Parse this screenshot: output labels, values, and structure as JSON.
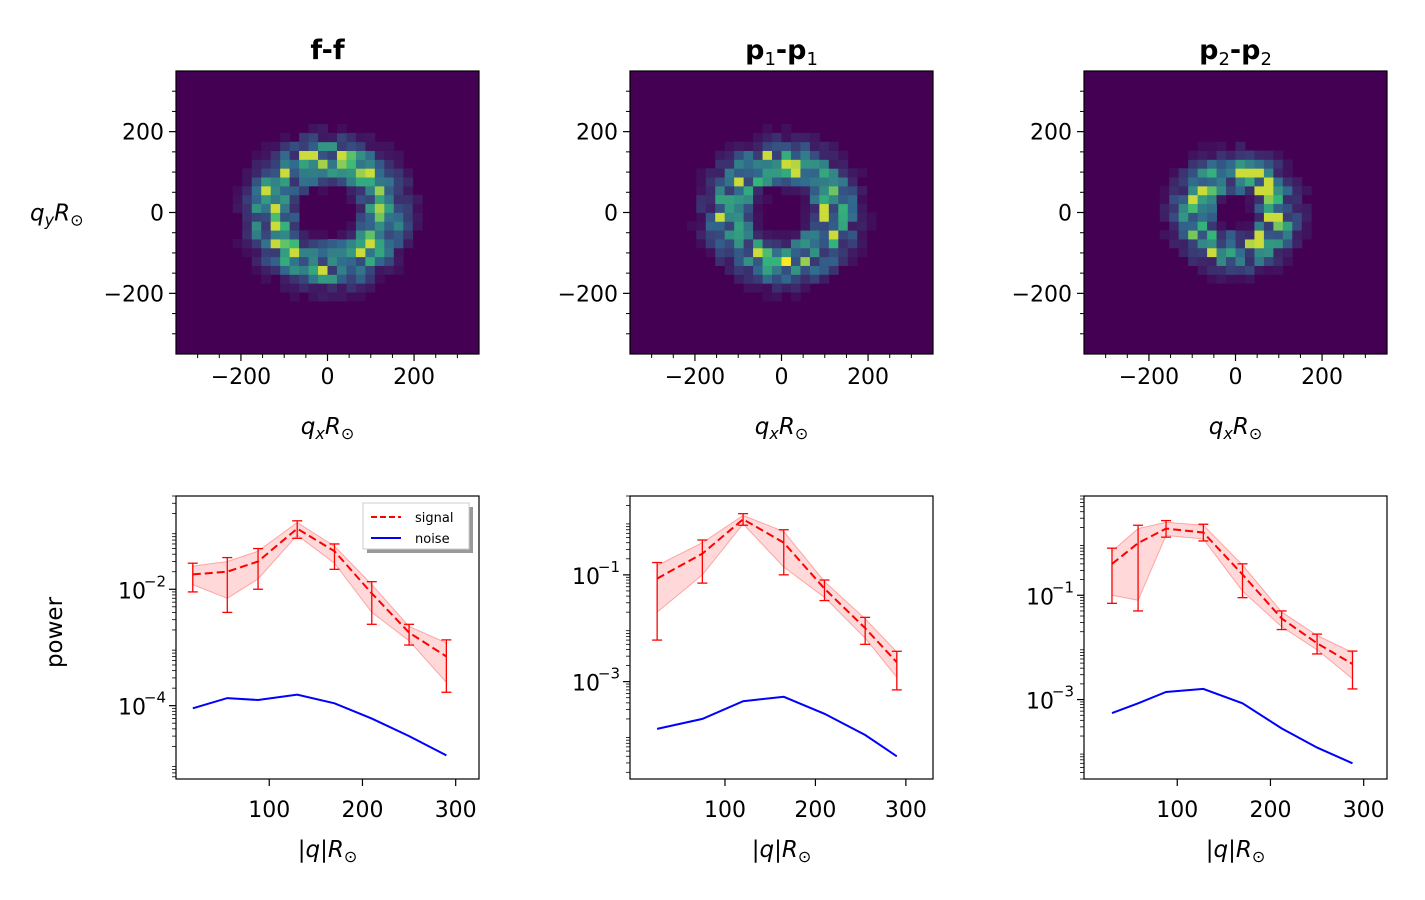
{
  "chart_data": [
    {
      "type": "heatmap",
      "title_main": "f-f",
      "title_sub1": "",
      "title_mid": "",
      "title_sub2": "",
      "xlabel": "q",
      "xlabel_sub": "x",
      "xlabel_tail": "R",
      "xlabel_odot": "⊙",
      "ylabel": "q",
      "ylabel_sub": "y",
      "ylabel_tail": "R",
      "ylabel_odot": "⊙",
      "xlim": [
        -350,
        350
      ],
      "ylim": [
        -350,
        350
      ],
      "xticks": [
        -200,
        0,
        200
      ],
      "yticks": [
        -200,
        0,
        200
      ],
      "xtick_labels": [
        "−200",
        "0",
        "200"
      ],
      "ytick_labels": [
        "−200",
        "0",
        "200"
      ],
      "ring_radius": 130,
      "ring_width": 55,
      "seed": 11,
      "colors": {
        "background": "#440154",
        "mid": "#31688e",
        "high": "#35b779",
        "peak": "#fde725"
      }
    },
    {
      "type": "heatmap",
      "title_main": "p",
      "title_sub1": "1",
      "title_mid": "-p",
      "title_sub2": "1",
      "xlabel": "q",
      "xlabel_sub": "x",
      "xlabel_tail": "R",
      "xlabel_odot": "⊙",
      "xlim": [
        -350,
        350
      ],
      "ylim": [
        -350,
        350
      ],
      "xticks": [
        -200,
        0,
        200
      ],
      "yticks": [
        -200,
        0,
        200
      ],
      "xtick_labels": [
        "−200",
        "0",
        "200"
      ],
      "ytick_labels": [
        "−200",
        "0",
        "200"
      ],
      "ring_radius": 120,
      "ring_width": 55,
      "seed": 23,
      "colors": {
        "background": "#440154",
        "mid": "#31688e",
        "high": "#35b779",
        "peak": "#fde725"
      }
    },
    {
      "type": "heatmap",
      "title_main": "p",
      "title_sub1": "2",
      "title_mid": "-p",
      "title_sub2": "2",
      "xlabel": "q",
      "xlabel_sub": "x",
      "xlabel_tail": "R",
      "xlabel_odot": "⊙",
      "xlim": [
        -350,
        350
      ],
      "ylim": [
        -350,
        350
      ],
      "xticks": [
        -200,
        0,
        200
      ],
      "yticks": [
        -200,
        0,
        200
      ],
      "xtick_labels": [
        "−200",
        "0",
        "200"
      ],
      "ytick_labels": [
        "−200",
        "0",
        "200"
      ],
      "ring_radius": 95,
      "ring_width": 50,
      "seed": 37,
      "colors": {
        "background": "#440154",
        "mid": "#31688e",
        "high": "#35b779",
        "peak": "#fde725"
      }
    },
    {
      "type": "line",
      "xlabel": "|q|R",
      "xlabel_odot": "⊙",
      "ylabel": "power",
      "yscale": "log",
      "xlim": [
        0,
        325
      ],
      "ylim": [
        5.5e-06,
        0.4
      ],
      "xticks": [
        100,
        200,
        300
      ],
      "xtick_labels": [
        "100",
        "200",
        "300"
      ],
      "yticks": [
        0.01,
        0.0001
      ],
      "ytick_mantissa": [
        "10",
        "10"
      ],
      "ytick_exponent": [
        "−2",
        "−4"
      ],
      "legend": {
        "placement": "top-right",
        "entries": [
          "signal",
          "noise"
        ]
      },
      "series": [
        {
          "name": "signal",
          "style": "dashed",
          "color": "#ff0000",
          "x": [
            18,
            55,
            88,
            130,
            170,
            210,
            250,
            290
          ],
          "y": [
            0.018,
            0.02,
            0.03,
            0.11,
            0.045,
            0.0085,
            0.0018,
            0.0007
          ],
          "err_low": [
            0.009,
            0.004,
            0.01,
            0.075,
            0.022,
            0.0025,
            0.0011,
            0.00017
          ],
          "err_high": [
            0.028,
            0.035,
            0.05,
            0.15,
            0.06,
            0.0135,
            0.0025,
            0.00135
          ],
          "band_low": [
            0.012,
            0.007,
            0.015,
            0.085,
            0.028,
            0.004,
            0.0013,
            0.00025
          ],
          "band_high": [
            0.025,
            0.03,
            0.045,
            0.14,
            0.055,
            0.012,
            0.0023,
            0.0012
          ]
        },
        {
          "name": "noise",
          "style": "solid",
          "color": "#0000ff",
          "x": [
            18,
            55,
            88,
            130,
            170,
            210,
            250,
            290
          ],
          "y": [
            9e-05,
            0.000135,
            0.000125,
            0.000155,
            0.00011,
            6e-05,
            3e-05,
            1.4e-05
          ]
        }
      ]
    },
    {
      "type": "line",
      "xlabel": "|q|R",
      "xlabel_odot": "⊙",
      "yscale": "log",
      "xlim": [
        -5,
        330
      ],
      "ylim": [
        1.5e-05,
        3.0
      ],
      "xticks": [
        100,
        200,
        300
      ],
      "xtick_labels": [
        "100",
        "200",
        "300"
      ],
      "yticks": [
        0.1,
        0.001
      ],
      "ytick_mantissa": [
        "10",
        "10"
      ],
      "ytick_exponent": [
        "−1",
        "−3"
      ],
      "series": [
        {
          "name": "",
          "style": "dashed",
          "color": "#ff0000",
          "x": [
            25,
            75,
            120,
            165,
            210,
            255,
            290
          ],
          "y": [
            0.085,
            0.25,
            1.1,
            0.4,
            0.055,
            0.01,
            0.0023
          ],
          "err_low": [
            0.006,
            0.07,
            0.85,
            0.1,
            0.033,
            0.005,
            0.0007
          ],
          "err_high": [
            0.17,
            0.45,
            1.4,
            0.7,
            0.08,
            0.016,
            0.0037
          ],
          "band_low": [
            0.02,
            0.1,
            0.9,
            0.14,
            0.038,
            0.0065,
            0.0012
          ],
          "band_high": [
            0.15,
            0.4,
            1.3,
            0.65,
            0.075,
            0.015,
            0.0036
          ]
        },
        {
          "name": "",
          "style": "solid",
          "color": "#0000ff",
          "x": [
            25,
            75,
            120,
            165,
            210,
            255,
            290
          ],
          "y": [
            0.00013,
            0.0002,
            0.00043,
            0.00052,
            0.00025,
            0.0001,
            4e-05
          ]
        }
      ]
    },
    {
      "type": "line",
      "xlabel": "|q|R",
      "xlabel_odot": "⊙",
      "yscale": "log",
      "xlim": [
        0,
        325
      ],
      "ylim": [
        3e-05,
        8.0
      ],
      "xticks": [
        100,
        200,
        300
      ],
      "xtick_labels": [
        "100",
        "200",
        "300"
      ],
      "yticks": [
        0.1,
        0.001
      ],
      "ytick_mantissa": [
        "10",
        "10"
      ],
      "ytick_exponent": [
        "−1",
        "−3"
      ],
      "series": [
        {
          "name": "",
          "style": "dashed",
          "color": "#ff0000",
          "x": [
            30,
            58,
            88,
            128,
            170,
            212,
            250,
            288
          ],
          "y": [
            0.4,
            1.0,
            1.9,
            1.6,
            0.25,
            0.036,
            0.012,
            0.0048
          ],
          "err_low": [
            0.07,
            0.05,
            1.3,
            1.1,
            0.09,
            0.022,
            0.0075,
            0.0016
          ],
          "err_high": [
            0.8,
            2.2,
            2.7,
            2.3,
            0.4,
            0.05,
            0.018,
            0.0085
          ],
          "band_low": [
            0.1,
            0.08,
            1.4,
            1.2,
            0.12,
            0.025,
            0.009,
            0.0025
          ],
          "band_high": [
            0.7,
            1.9,
            2.5,
            2.2,
            0.38,
            0.048,
            0.017,
            0.008
          ]
        },
        {
          "name": "",
          "style": "solid",
          "color": "#0000ff",
          "x": [
            30,
            58,
            88,
            128,
            170,
            212,
            250,
            288
          ],
          "y": [
            0.00055,
            0.00085,
            0.0014,
            0.0016,
            0.00085,
            0.00028,
            0.00012,
            6e-05
          ]
        }
      ]
    }
  ]
}
